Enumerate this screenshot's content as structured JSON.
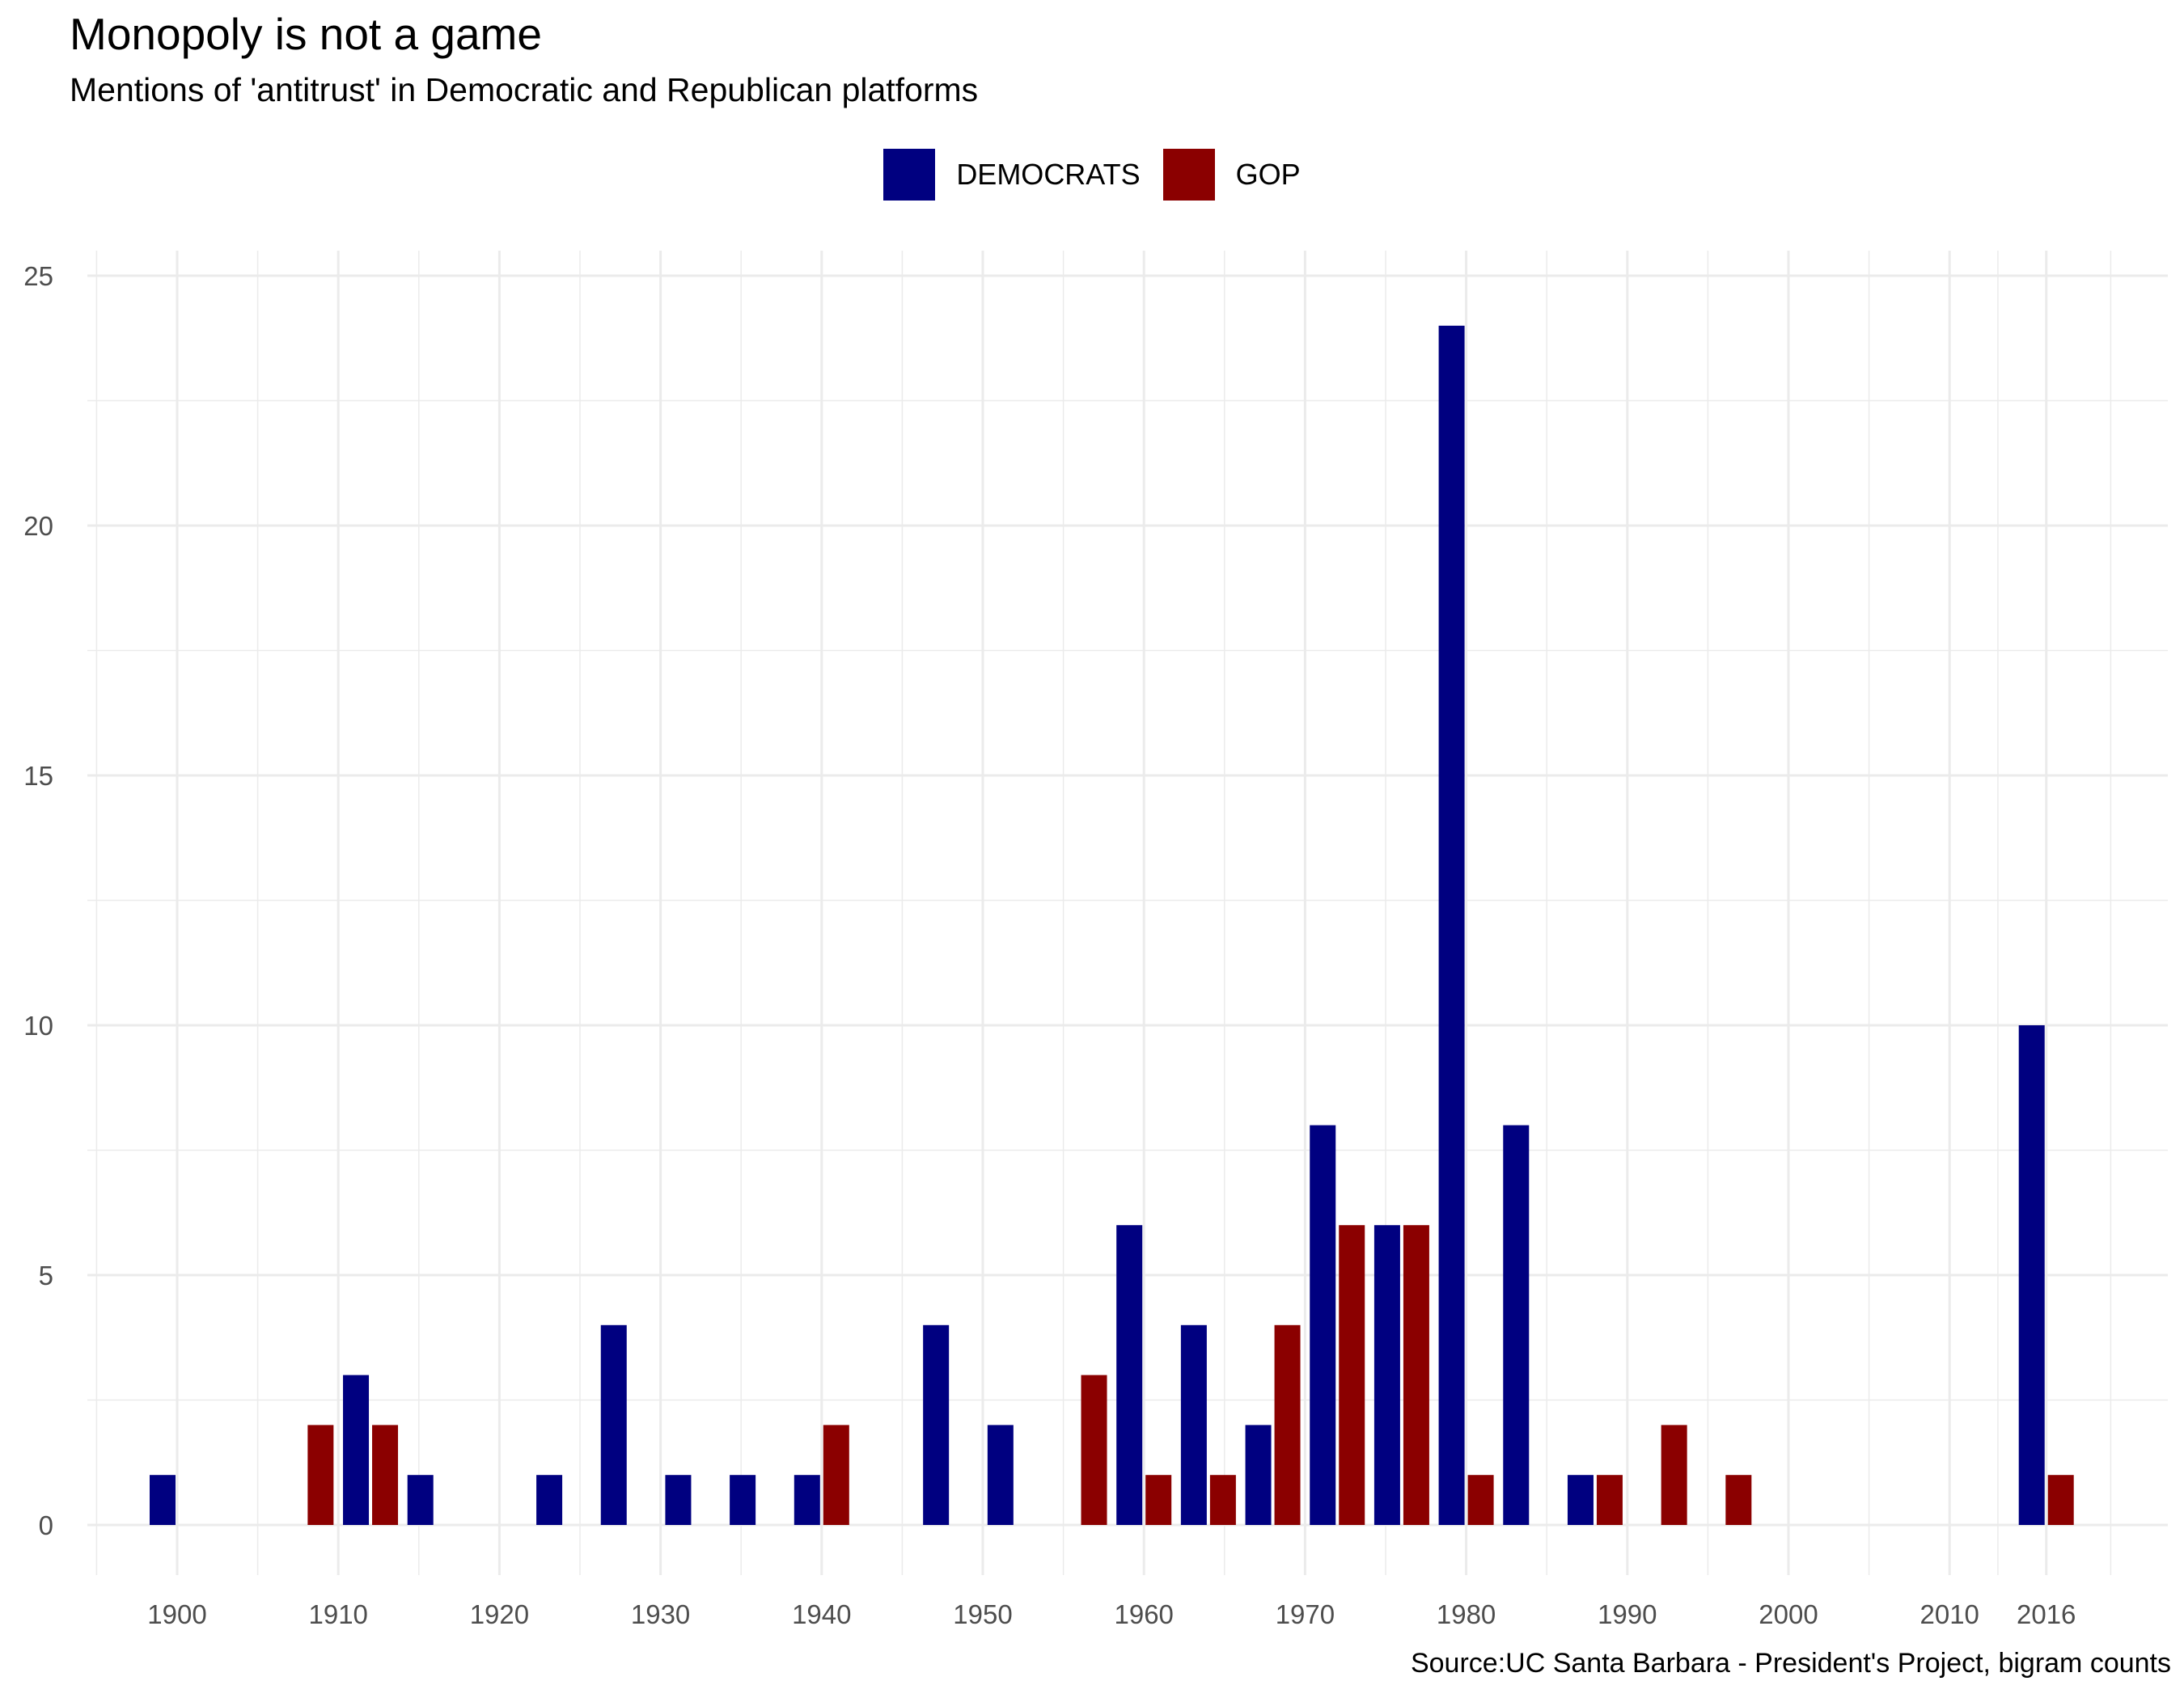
{
  "title": "Monopoly is not a game",
  "subtitle": "Mentions of 'antitrust' in Democratic and Republican platforms",
  "caption": "Source:UC Santa Barbara - President's Project, bigram counts",
  "colors": {
    "democrats": "#000080",
    "gop": "#8B0000",
    "grid": "#ebebeb",
    "background": "#ffffff"
  },
  "legend": [
    {
      "label": "DEMOCRATS",
      "color": "#000080"
    },
    {
      "label": "GOP",
      "color": "#8B0000"
    }
  ],
  "chart_data": {
    "type": "bar",
    "layout": "dodged",
    "title": "Monopoly is not a game",
    "subtitle": "Mentions of 'antitrust' in Democratic and Republican platforms",
    "xlabel": "",
    "ylabel": "",
    "xlim": [
      1895,
      2024
    ],
    "ylim": [
      0,
      25
    ],
    "x_ticks": [
      1900,
      1910,
      1920,
      1930,
      1940,
      1950,
      1960,
      1970,
      1980,
      1990,
      2000,
      2010,
      2016
    ],
    "y_ticks": [
      0,
      5,
      10,
      15,
      20,
      25
    ],
    "grid": true,
    "legend_position": "top",
    "series": [
      {
        "name": "DEMOCRATS",
        "color": "#000080",
        "points": [
          [
            1900,
            1
          ],
          [
            1912,
            3
          ],
          [
            1916,
            1
          ],
          [
            1924,
            1
          ],
          [
            1928,
            4
          ],
          [
            1932,
            1
          ],
          [
            1936,
            1
          ],
          [
            1940,
            1
          ],
          [
            1948,
            4
          ],
          [
            1952,
            2
          ],
          [
            1960,
            6
          ],
          [
            1964,
            4
          ],
          [
            1968,
            2
          ],
          [
            1972,
            8
          ],
          [
            1976,
            6
          ],
          [
            1980,
            24
          ],
          [
            1984,
            8
          ],
          [
            1988,
            1
          ],
          [
            2016,
            10
          ]
        ]
      },
      {
        "name": "GOP",
        "color": "#8B0000",
        "points": [
          [
            1908,
            2
          ],
          [
            1912,
            2
          ],
          [
            1940,
            2
          ],
          [
            1956,
            3
          ],
          [
            1960,
            1
          ],
          [
            1964,
            1
          ],
          [
            1968,
            4
          ],
          [
            1972,
            6
          ],
          [
            1976,
            6
          ],
          [
            1980,
            1
          ],
          [
            1988,
            1
          ],
          [
            1992,
            2
          ],
          [
            1996,
            1
          ],
          [
            2016,
            1
          ]
        ]
      }
    ]
  }
}
